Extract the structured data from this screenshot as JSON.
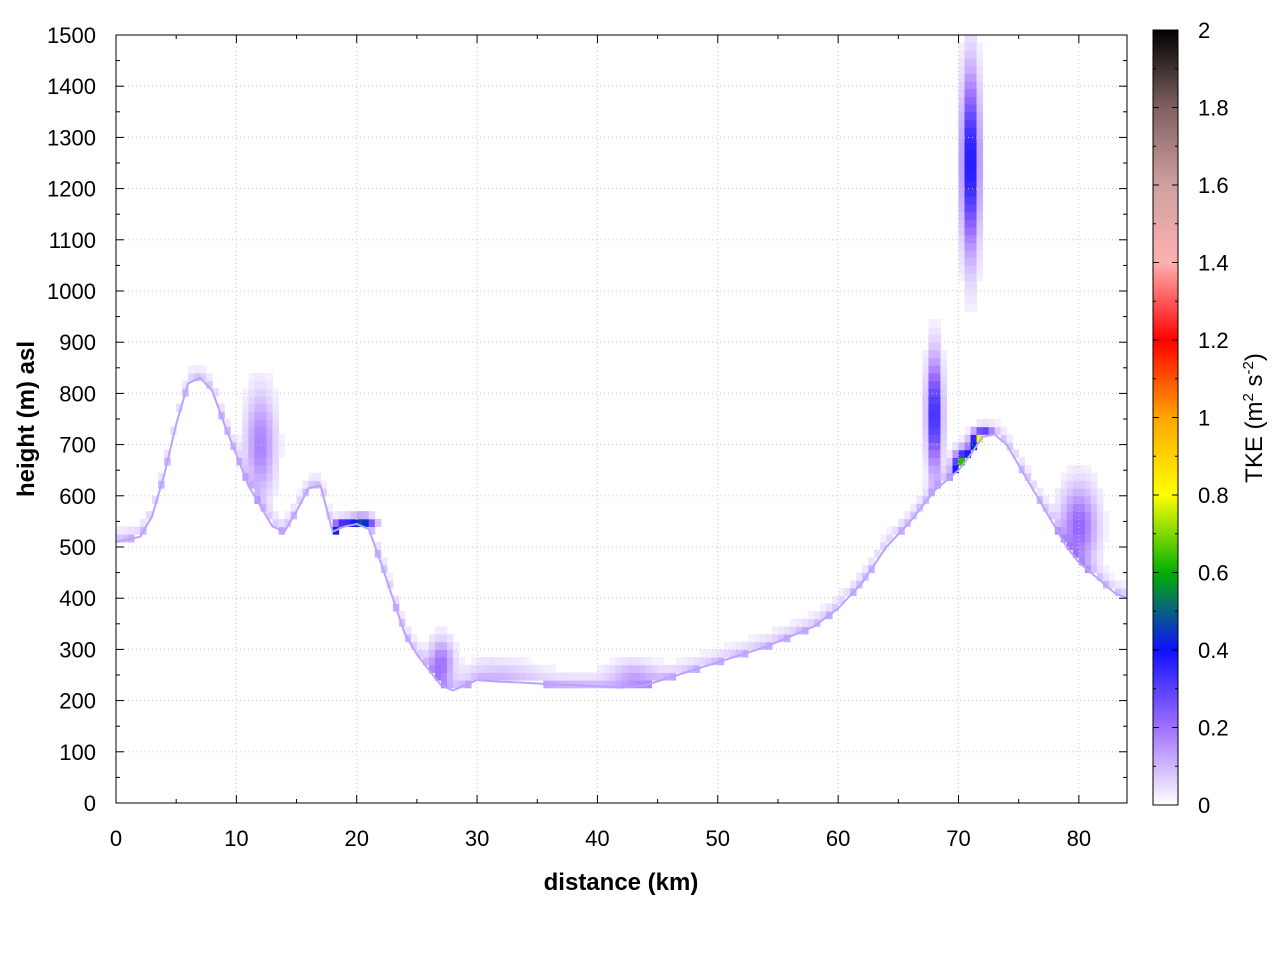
{
  "chart_data": {
    "type": "heatmap",
    "title": "",
    "xlabel": "distance (km)",
    "ylabel": "height (m) asl",
    "colorbar_label": "TKE (m² s⁻²)",
    "colorbar_label_parts": {
      "main": "TKE (m",
      "sup1": "2",
      "mid": " s",
      "sup2": "-2",
      "end": ")"
    },
    "xlim": [
      0,
      84
    ],
    "ylim": [
      0,
      1500
    ],
    "clim": [
      0,
      2
    ],
    "grid": true,
    "x_ticks": [
      0,
      10,
      20,
      30,
      40,
      50,
      60,
      70,
      80
    ],
    "y_ticks": [
      0,
      100,
      200,
      300,
      400,
      500,
      600,
      700,
      800,
      900,
      1000,
      1100,
      1200,
      1300,
      1400,
      1500
    ],
    "colorbar_ticks": [
      0,
      0.2,
      0.4,
      0.6,
      0.8,
      1,
      1.2,
      1.4,
      1.6,
      1.8,
      2
    ],
    "colormap": [
      {
        "v": 0.0,
        "color": "#ffffff"
      },
      {
        "v": 0.2,
        "color": "#a070ff"
      },
      {
        "v": 0.4,
        "color": "#1010ff"
      },
      {
        "v": 0.6,
        "color": "#00b000"
      },
      {
        "v": 0.8,
        "color": "#ffff00"
      },
      {
        "v": 1.0,
        "color": "#ffa500"
      },
      {
        "v": 1.2,
        "color": "#ff0000"
      },
      {
        "v": 1.4,
        "color": "#ffb0b0"
      },
      {
        "v": 1.6,
        "color": "#d0a0a0"
      },
      {
        "v": 1.8,
        "color": "#806060"
      },
      {
        "v": 2.0,
        "color": "#000000"
      }
    ],
    "terrain": {
      "x": [
        0,
        2,
        3,
        4,
        5,
        6,
        7,
        8,
        9,
        10,
        11,
        12,
        13,
        14,
        15,
        16,
        17,
        18,
        19,
        20,
        21,
        22,
        23,
        24,
        25,
        26,
        27,
        28,
        29,
        30,
        32,
        34,
        36,
        38,
        40,
        42,
        44,
        46,
        48,
        50,
        52,
        54,
        56,
        58,
        60,
        62,
        64,
        66,
        68,
        70,
        71,
        72,
        73,
        74,
        75,
        76,
        77,
        78,
        79,
        80,
        81,
        82,
        83,
        84
      ],
      "y": [
        510,
        520,
        560,
        640,
        740,
        820,
        830,
        805,
        740,
        680,
        620,
        580,
        540,
        530,
        570,
        615,
        620,
        530,
        540,
        545,
        535,
        470,
        400,
        330,
        290,
        260,
        230,
        220,
        230,
        240,
        237,
        235,
        232,
        230,
        228,
        225,
        230,
        245,
        260,
        275,
        290,
        305,
        325,
        345,
        380,
        430,
        500,
        550,
        610,
        650,
        680,
        715,
        720,
        700,
        660,
        620,
        580,
        540,
        500,
        470,
        450,
        430,
        410,
        400
      ]
    },
    "features": [
      {
        "x": 12,
        "y": 700,
        "dx": 1.2,
        "dy": 100,
        "tke": 0.18
      },
      {
        "x": 18.8,
        "y": 535,
        "dx": 0.8,
        "dy": 15,
        "tke": 0.5
      },
      {
        "x": 20.5,
        "y": 548,
        "dx": 1.0,
        "dy": 12,
        "tke": 0.4
      },
      {
        "x": 27,
        "y": 275,
        "dx": 1.0,
        "dy": 45,
        "tke": 0.2
      },
      {
        "x": 68,
        "y": 760,
        "dx": 0.6,
        "dy": 110,
        "tke": 0.38
      },
      {
        "x": 71,
        "y": 1250,
        "dx": 0.7,
        "dy": 170,
        "tke": 0.42
      },
      {
        "x": 70.5,
        "y": 655,
        "dx": 0.8,
        "dy": 30,
        "tke": 0.75
      },
      {
        "x": 72,
        "y": 705,
        "dx": 0.8,
        "dy": 20,
        "tke": 0.9
      },
      {
        "x": 80,
        "y": 540,
        "dx": 1.5,
        "dy": 80,
        "tke": 0.22
      },
      {
        "x": 43,
        "y": 250,
        "dx": 2.0,
        "dy": 30,
        "tke": 0.1
      },
      {
        "x": 32,
        "y": 260,
        "dx": 3.0,
        "dy": 30,
        "tke": 0.05
      }
    ]
  }
}
